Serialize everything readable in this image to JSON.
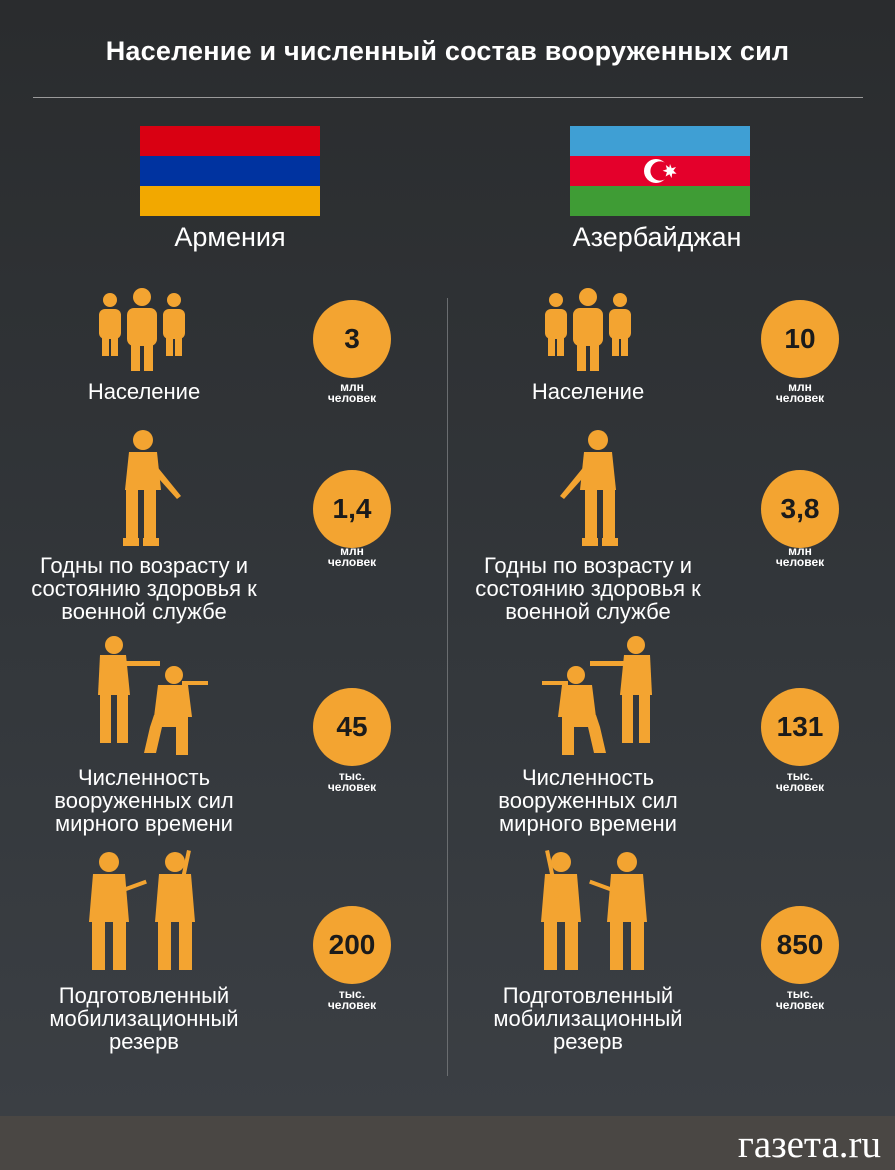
{
  "title": "Население и численный состав вооруженных сил",
  "colors": {
    "accent": "#f3a431",
    "background": "#2e3134",
    "footer": "#4a4744"
  },
  "countries": [
    {
      "name": "Армения",
      "flag": {
        "stripes": [
          "#d90012",
          "#0033a0",
          "#f2a800"
        ]
      },
      "stats": [
        {
          "label": "Население",
          "value": "3",
          "unit_line1": "млн",
          "unit_line2": "человек",
          "icon": "people-group-icon"
        },
        {
          "label": "Годны по возрасту и состоянию здоровья к военной службе",
          "value": "1,4",
          "unit_line1": "млн",
          "unit_line2": "человек",
          "icon": "soldier-icon"
        },
        {
          "label": "Численность вооруженных сил мирного времени",
          "value": "45",
          "unit_line1": "тыс.",
          "unit_line2": "человек",
          "icon": "soldiers-aiming-icon"
        },
        {
          "label": "Подготовленный мобилизационный резерв",
          "value": "200",
          "unit_line1": "тыс.",
          "unit_line2": "человек",
          "icon": "reserve-soldiers-icon"
        }
      ]
    },
    {
      "name": "Азербайджан",
      "flag": {
        "stripes": [
          "#3f9fd4",
          "#e4002b",
          "#3f9c35"
        ],
        "emblem": "crescent-star-icon"
      },
      "stats": [
        {
          "label": "Население",
          "value": "10",
          "unit_line1": "млн",
          "unit_line2": "человек",
          "icon": "people-group-icon"
        },
        {
          "label": "Годны по возрасту и состоянию здоровья к военной службе",
          "value": "3,8",
          "unit_line1": "млн",
          "unit_line2": "человек",
          "icon": "soldier-icon"
        },
        {
          "label": "Численность вооруженных сил мирного времени",
          "value": "131",
          "unit_line1": "тыс.",
          "unit_line2": "человек",
          "icon": "soldiers-aiming-icon"
        },
        {
          "label": "Подготовленный мобилизационный резерв",
          "value": "850",
          "unit_line1": "тыс.",
          "unit_line2": "человек",
          "icon": "reserve-soldiers-icon"
        }
      ]
    }
  ],
  "footer": {
    "logo": "газета.ru"
  }
}
